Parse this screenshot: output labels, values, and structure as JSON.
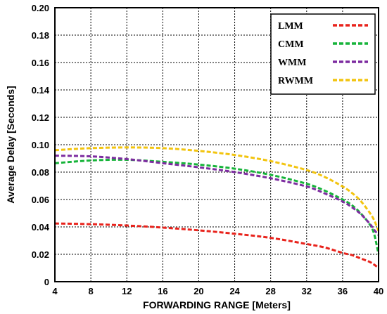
{
  "chart_data": {
    "type": "line",
    "xlabel": "FORWARDING RANGE [Meters]",
    "ylabel": "Average Delay [Seconds]",
    "xlim": [
      4,
      40
    ],
    "ylim": [
      0,
      0.2
    ],
    "grid": true,
    "legend_position": "top-right",
    "x_ticks": [
      "4",
      "8",
      "12",
      "16",
      "20",
      "24",
      "28",
      "32",
      "36",
      "40"
    ],
    "y_ticks": [
      "0",
      "0.02",
      "0.04",
      "0.06",
      "0.08",
      "0.10",
      "0.12",
      "0.14",
      "0.16",
      "0.18",
      "0.20"
    ],
    "series": [
      {
        "name": "LMM",
        "color": "#e8231c",
        "x": [
          4,
          8,
          12,
          16,
          20,
          24,
          28,
          32,
          34,
          36,
          37,
          38,
          39,
          39.5,
          40
        ],
        "y": [
          0.0425,
          0.042,
          0.041,
          0.0395,
          0.0375,
          0.035,
          0.032,
          0.0275,
          0.025,
          0.021,
          0.0195,
          0.017,
          0.0145,
          0.0125,
          0.01
        ]
      },
      {
        "name": "CMM",
        "color": "#17b43a",
        "x": [
          4,
          8,
          12,
          16,
          20,
          24,
          28,
          32,
          34,
          36,
          37,
          38,
          39,
          39.5,
          40
        ],
        "y": [
          0.0865,
          0.0885,
          0.089,
          0.0875,
          0.0855,
          0.0825,
          0.078,
          0.0715,
          0.0665,
          0.06,
          0.056,
          0.05,
          0.042,
          0.035,
          0.02
        ]
      },
      {
        "name": "WMM",
        "color": "#7d2ca0",
        "x": [
          4,
          8,
          12,
          16,
          20,
          24,
          28,
          32,
          34,
          36,
          37,
          38,
          39,
          39.5,
          40
        ],
        "y": [
          0.092,
          0.0915,
          0.0895,
          0.0865,
          0.0835,
          0.08,
          0.0755,
          0.0695,
          0.0645,
          0.0585,
          0.0545,
          0.0495,
          0.0425,
          0.038,
          0.034
        ]
      },
      {
        "name": "RWMM",
        "color": "#f2c40f",
        "x": [
          4,
          8,
          12,
          16,
          20,
          24,
          28,
          32,
          34,
          36,
          37,
          38,
          39,
          39.5,
          40
        ],
        "y": [
          0.096,
          0.0975,
          0.098,
          0.0975,
          0.0955,
          0.0925,
          0.088,
          0.0815,
          0.0765,
          0.0695,
          0.065,
          0.059,
          0.0505,
          0.045,
          0.037
        ]
      }
    ]
  }
}
